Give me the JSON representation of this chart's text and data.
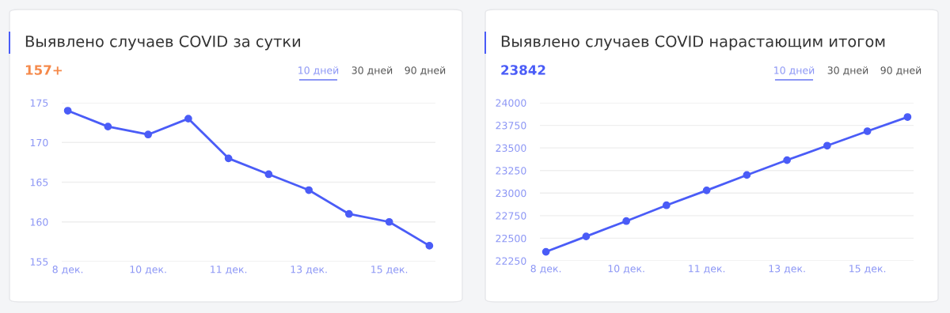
{
  "chart_data": [
    {
      "type": "line",
      "title": "Выявлено случаев COVID за сутки",
      "annotations": [
        "157+",
        "10 дней",
        "30 дней",
        "90 дней"
      ],
      "categories": [
        "8 дек.",
        null,
        "10 дек.",
        null,
        "11 дек.",
        null,
        "13 дек.",
        null,
        "15 дек.",
        null
      ],
      "series": [
        {
          "color": "#4a5cf7",
          "values": [
            174,
            172,
            171,
            173,
            168,
            166,
            164,
            161,
            160,
            157
          ]
        }
      ],
      "ylim": [
        155,
        175
      ],
      "yticks": [
        155,
        160,
        165,
        170,
        175
      ],
      "grid": "y",
      "marker": "circle",
      "line_style": "solid"
    },
    {
      "type": "line",
      "title": "Выявлено случаев COVID нарастающим итогом",
      "annotations": [
        "23842",
        "10 дней",
        "30 дней",
        "90 дней"
      ],
      "categories": [
        "8 дек.",
        null,
        "10 дек.",
        null,
        "11 дек.",
        null,
        "13 дек.",
        null,
        "15 дек.",
        null
      ],
      "series": [
        {
          "color": "#4a5cf7",
          "values": [
            22350,
            22520,
            22690,
            22865,
            23030,
            23200,
            23365,
            23525,
            23685,
            23842
          ]
        }
      ],
      "ylim": [
        22250,
        24000
      ],
      "yticks": [
        22250,
        22500,
        22750,
        23000,
        23250,
        23500,
        23750,
        24000
      ],
      "grid": "y",
      "marker": "circle",
      "line_style": "solid"
    }
  ]
}
